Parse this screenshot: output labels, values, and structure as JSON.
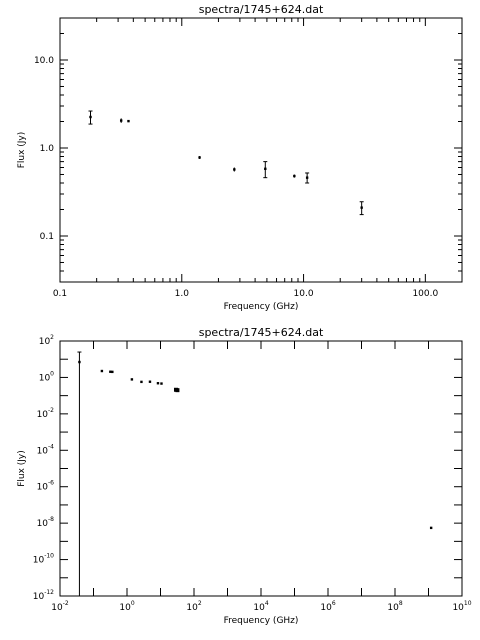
{
  "chart_data": [
    {
      "type": "scatter",
      "title": "spectra/1745+624.dat",
      "xlabel": "Frequency (GHz)",
      "ylabel": "Flux (Jy)",
      "xscale": "log",
      "yscale": "log",
      "xlim": [
        0.1,
        200
      ],
      "ylim": [
        0.03,
        30
      ],
      "grid": false,
      "x_ticks": [
        {
          "value": 0.1,
          "label": "0.1"
        },
        {
          "value": 1,
          "label": "1.0"
        },
        {
          "value": 10,
          "label": "10.0"
        },
        {
          "value": 100,
          "label": "100.0"
        }
      ],
      "y_ticks": [
        {
          "value": 0.1,
          "label": "0.1"
        },
        {
          "value": 1,
          "label": "1.0"
        },
        {
          "value": 10,
          "label": "10.0"
        }
      ],
      "points": [
        {
          "x": 0.178,
          "y": 2.25,
          "err": 0.38
        },
        {
          "x": 0.318,
          "y": 2.05,
          "err": 0.12
        },
        {
          "x": 0.365,
          "y": 2.02,
          "err": 0.05
        },
        {
          "x": 1.4,
          "y": 0.78,
          "err": 0.03
        },
        {
          "x": 2.7,
          "y": 0.57,
          "err": 0.03
        },
        {
          "x": 4.85,
          "y": 0.58,
          "err": 0.12
        },
        {
          "x": 8.4,
          "y": 0.48,
          "err": 0.02
        },
        {
          "x": 10.7,
          "y": 0.46,
          "err": 0.06
        },
        {
          "x": 30.0,
          "y": 0.21,
          "err": 0.035
        }
      ]
    },
    {
      "type": "scatter",
      "title": "spectra/1745+624.dat",
      "xlabel": "Frequency (GHz)",
      "ylabel": "Flux (Jy)",
      "xscale": "log",
      "yscale": "log",
      "xlim": [
        0.01,
        10000000000.0
      ],
      "ylim": [
        1e-12,
        100
      ],
      "grid": false,
      "x_ticks": [
        {
          "value": 0.01,
          "base": "10",
          "exp": "-2"
        },
        {
          "value": 1,
          "base": "10",
          "exp": "0"
        },
        {
          "value": 100,
          "base": "10",
          "exp": "2"
        },
        {
          "value": 10000,
          "base": "10",
          "exp": "4"
        },
        {
          "value": 1000000,
          "base": "10",
          "exp": "6"
        },
        {
          "value": 100000000,
          "base": "10",
          "exp": "8"
        },
        {
          "value": 10000000000,
          "base": "10",
          "exp": "10"
        }
      ],
      "y_ticks": [
        {
          "value": 1e-12,
          "base": "10",
          "exp": "-12"
        },
        {
          "value": 1e-10,
          "base": "10",
          "exp": "-10"
        },
        {
          "value": 1e-08,
          "base": "10",
          "exp": "-8"
        },
        {
          "value": 1e-06,
          "base": "10",
          "exp": "-6"
        },
        {
          "value": 0.0001,
          "base": "10",
          "exp": "-4"
        },
        {
          "value": 0.01,
          "base": "10",
          "exp": "-2"
        },
        {
          "value": 1,
          "base": "10",
          "exp": "0"
        },
        {
          "value": 100,
          "base": "10",
          "exp": "2"
        }
      ],
      "points": [
        {
          "x": 0.038,
          "y": 7.0,
          "err_low_to_axis": true
        },
        {
          "x": 0.178,
          "y": 2.25
        },
        {
          "x": 0.318,
          "y": 2.05
        },
        {
          "x": 0.365,
          "y": 2.02
        },
        {
          "x": 1.4,
          "y": 0.78
        },
        {
          "x": 2.7,
          "y": 0.57
        },
        {
          "x": 4.85,
          "y": 0.58
        },
        {
          "x": 8.4,
          "y": 0.48
        },
        {
          "x": 10.7,
          "y": 0.46
        },
        {
          "x": 29.0,
          "y": 0.21,
          "box": true
        },
        {
          "x": 32.0,
          "y": 0.2,
          "box": true
        },
        {
          "x": 1200000000.0,
          "y": 5.5e-09
        }
      ]
    }
  ]
}
